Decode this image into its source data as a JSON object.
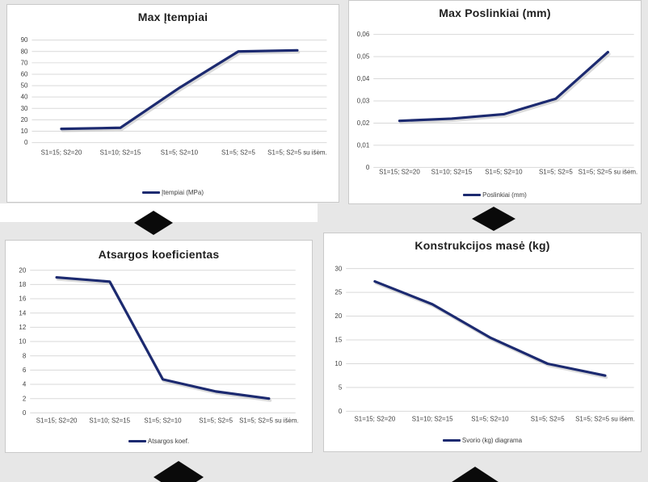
{
  "page": {
    "background": "#e7e7e7",
    "panel_background": "#ffffff",
    "panel_border": "#c9c9c9",
    "grid_color": "#d9d9d9",
    "tick_color": "#404040",
    "title_color": "#1f1f1f",
    "diamond_color": "#0a0a0a",
    "accent_line": "#1c2a70"
  },
  "chart_data": [
    {
      "type": "line",
      "title": "Max Įtempiai",
      "legend": "Įtempiai (MPa)",
      "legend_position": "bottom",
      "grid": true,
      "line_color": "#1c2a70",
      "categories": [
        "S1=15; S2=20",
        "S1=10; S2=15",
        "S1=5; S2=10",
        "S1=5; S2=5",
        "S1=5; S2=5 su išėm."
      ],
      "values": [
        12,
        13,
        48,
        80,
        81
      ],
      "xlabel": "",
      "ylabel": "",
      "ylim": [
        0,
        90
      ],
      "yticks": [
        "0",
        "10",
        "20",
        "30",
        "40",
        "50",
        "60",
        "70",
        "80",
        "90"
      ]
    },
    {
      "type": "line",
      "title": "Max Poslinkiai (mm)",
      "legend": "Poslinkiai (mm)",
      "legend_position": "bottom",
      "grid": true,
      "line_color": "#1c2a70",
      "categories": [
        "S1=15; S2=20",
        "S1=10; S2=15",
        "S1=5; S2=10",
        "S1=5; S2=5",
        "S1=5; S2=5 su išėm."
      ],
      "values": [
        0.021,
        0.022,
        0.024,
        0.031,
        0.052
      ],
      "xlabel": "",
      "ylabel": "",
      "ylim": [
        0,
        0.06
      ],
      "yticks": [
        "0",
        "0,01",
        "0,02",
        "0,03",
        "0,04",
        "0,05",
        "0,06"
      ]
    },
    {
      "type": "line",
      "title": "Atsargos koeficientas",
      "legend": "Atsargos koef.",
      "legend_position": "bottom",
      "grid": true,
      "line_color": "#1c2a70",
      "categories": [
        "S1=15; S2=20",
        "S1=10; S2=15",
        "S1=5; S2=10",
        "S1=5; S2=5",
        "S1=5; S2=5 su išėm."
      ],
      "values": [
        19,
        18.4,
        4.7,
        3,
        2
      ],
      "xlabel": "",
      "ylabel": "",
      "ylim": [
        0,
        20
      ],
      "yticks": [
        "0",
        "2",
        "4",
        "6",
        "8",
        "10",
        "12",
        "14",
        "16",
        "18",
        "20"
      ]
    },
    {
      "type": "line",
      "title": "Konstrukcijos masė (kg)",
      "legend": "Svorio (kg) diagrama",
      "legend_position": "bottom",
      "grid": true,
      "line_color": "#1c2a70",
      "categories": [
        "S1=15; S2=20",
        "S1=10; S2=15",
        "S1=5; S2=10",
        "S1=5; S2=5",
        "S1=5; S2=5 su išėm."
      ],
      "values": [
        27.3,
        22.5,
        15.5,
        10,
        7.5
      ],
      "xlabel": "",
      "ylabel": "",
      "ylim": [
        0,
        30
      ],
      "yticks": [
        "0",
        "5",
        "10",
        "15",
        "20",
        "25",
        "30"
      ]
    }
  ]
}
